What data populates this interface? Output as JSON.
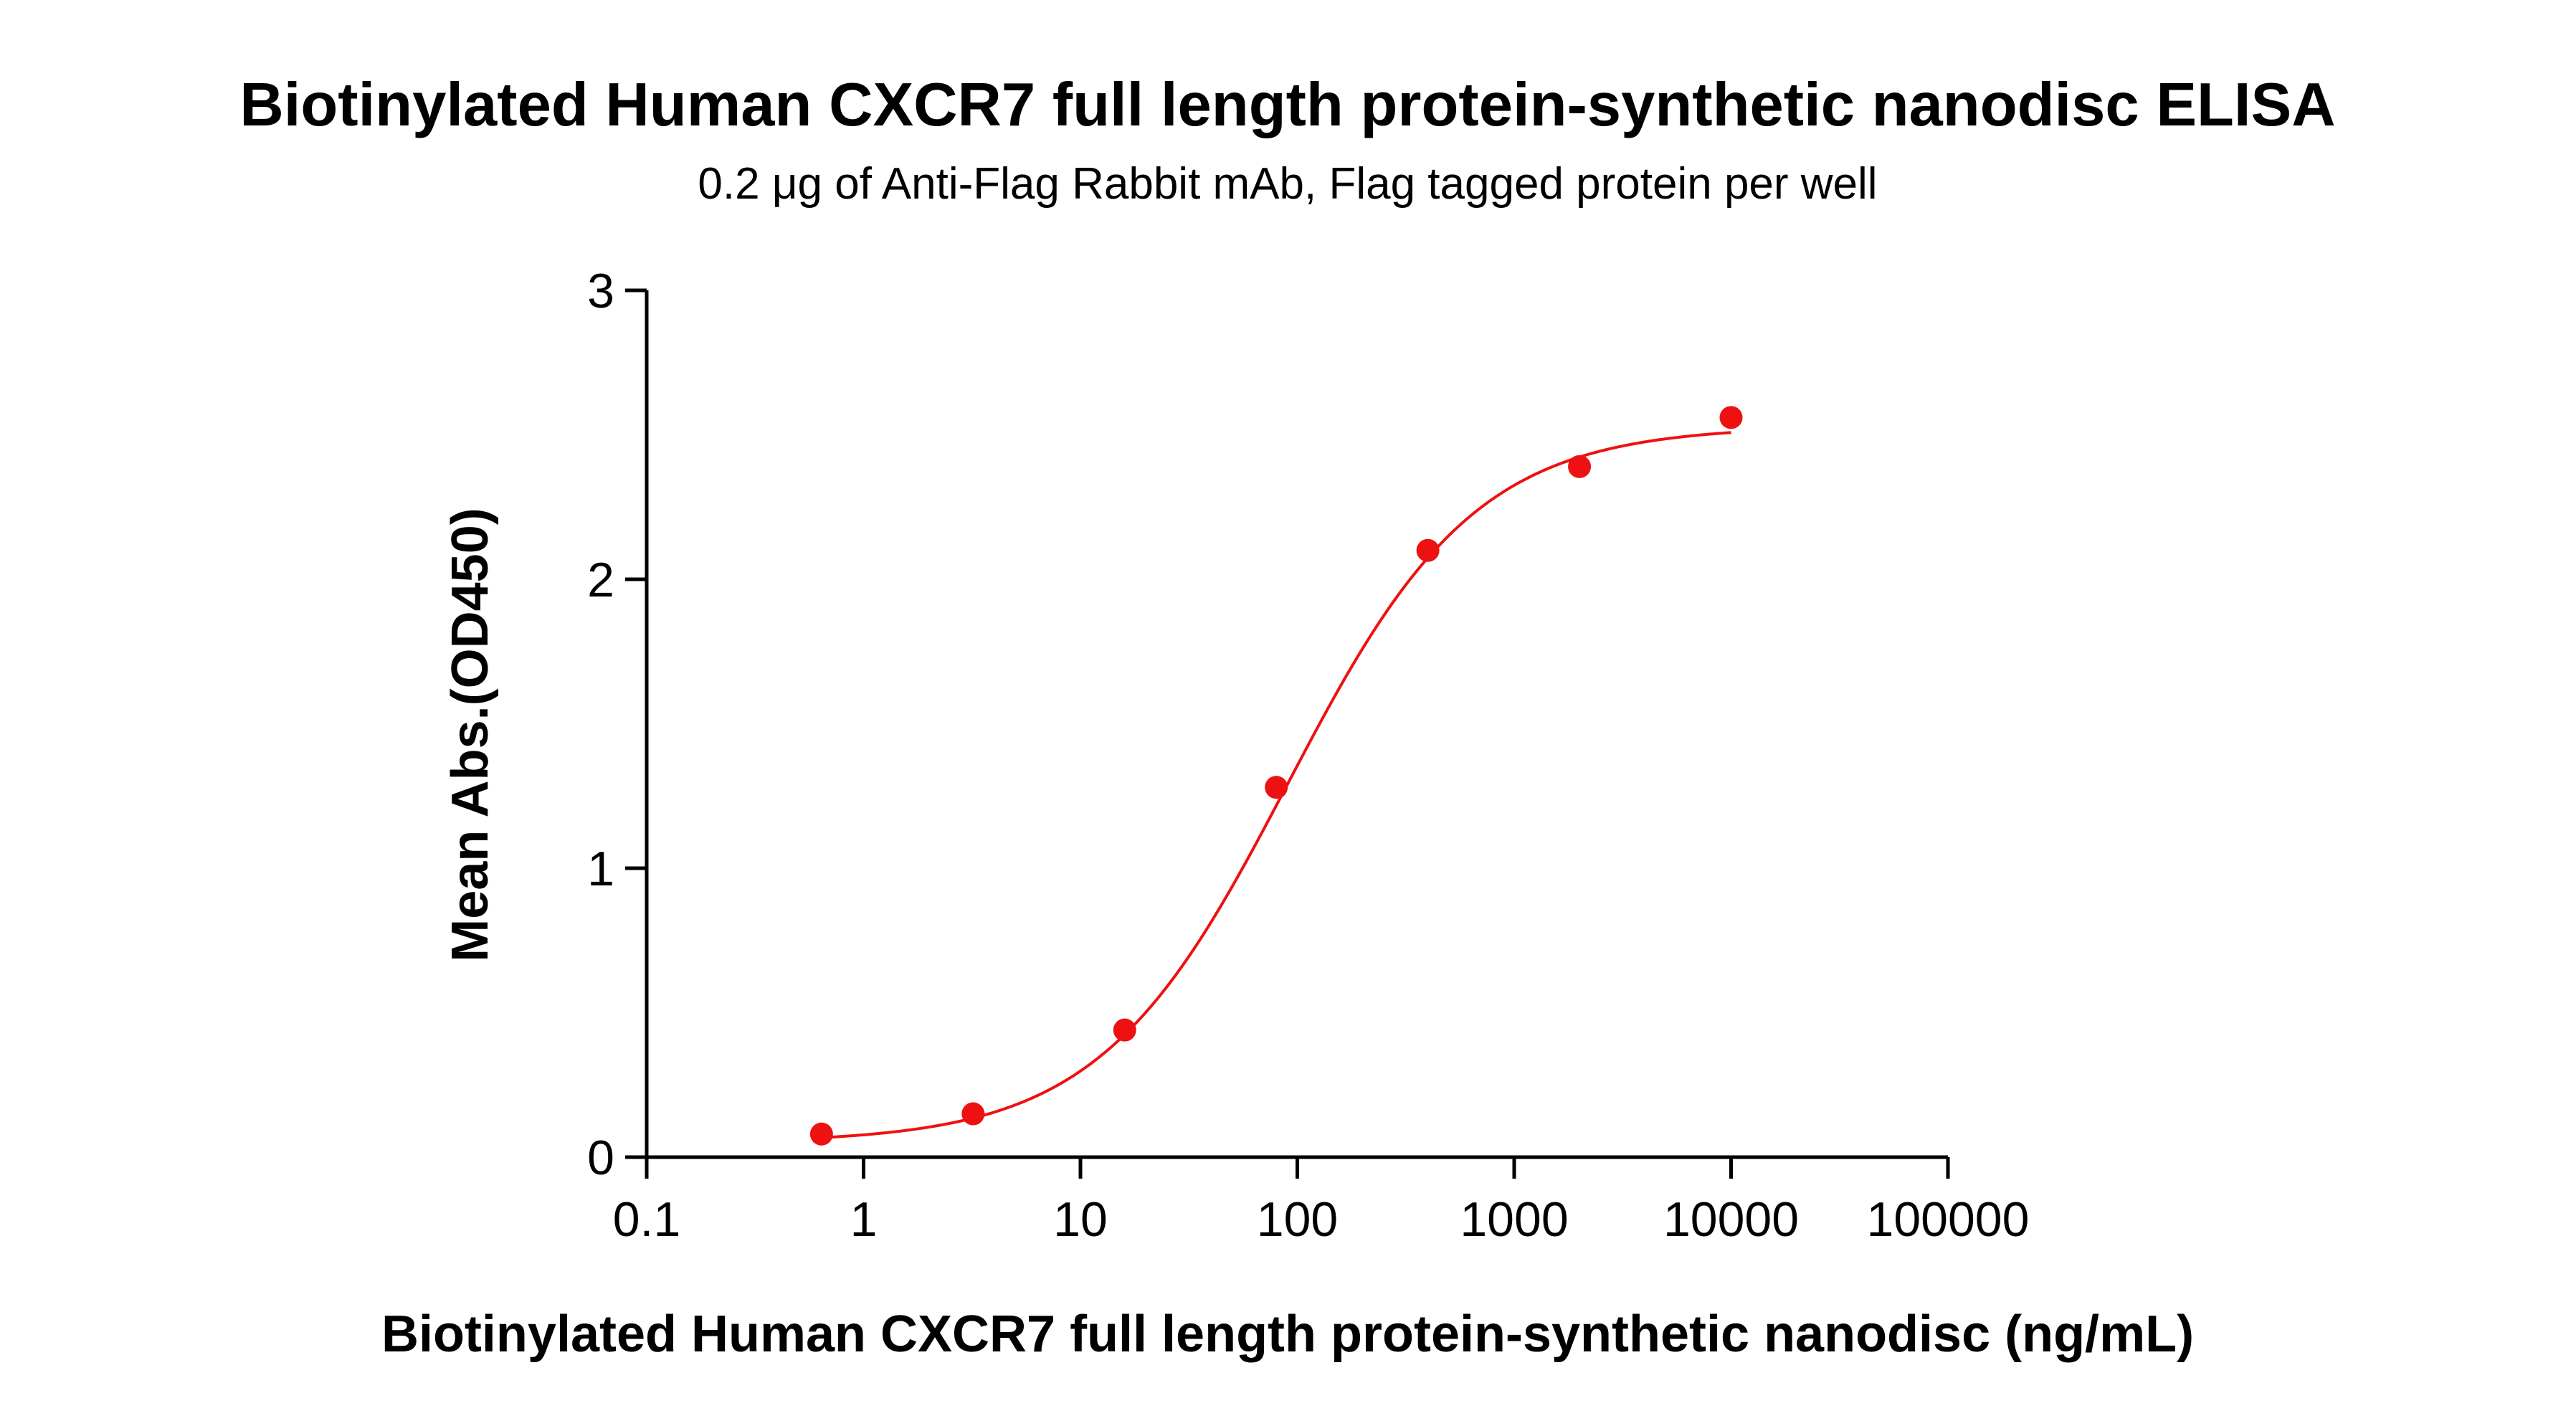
{
  "chart_data": {
    "type": "scatter",
    "title": "Biotinylated Human CXCR7 full length protein-synthetic nanodisc ELISA",
    "subtitle": "0.2 μg of Anti-Flag Rabbit mAb, Flag tagged protein per well",
    "xlabel": "Biotinylated Human CXCR7 full length protein-synthetic nanodisc (ng/mL)",
    "ylabel": "Mean Abs.(OD450)",
    "xscale": "log",
    "xlim": [
      0.1,
      100000
    ],
    "ylim": [
      0,
      3
    ],
    "xticks": [
      0.1,
      1,
      10,
      100,
      1000,
      10000,
      100000
    ],
    "xtick_labels": [
      "0.1",
      "1",
      "10",
      "100",
      "1000",
      "10000",
      "100000"
    ],
    "yticks": [
      0,
      1,
      2,
      3
    ],
    "ytick_labels": [
      "0",
      "1",
      "2",
      "3"
    ],
    "grid": false,
    "series": [
      {
        "name": "Mean Abs.",
        "color": "#ee1111",
        "x": [
          0.64,
          3.2,
          16,
          80,
          400,
          2000,
          10000
        ],
        "y": [
          0.08,
          0.15,
          0.44,
          1.28,
          2.1,
          2.39,
          2.56
        ]
      }
    ],
    "fit": {
      "model": "4PL",
      "bottom": 0.05,
      "top": 2.53,
      "ec50": 90,
      "hill": 1.0,
      "color": "#ee1111"
    }
  }
}
